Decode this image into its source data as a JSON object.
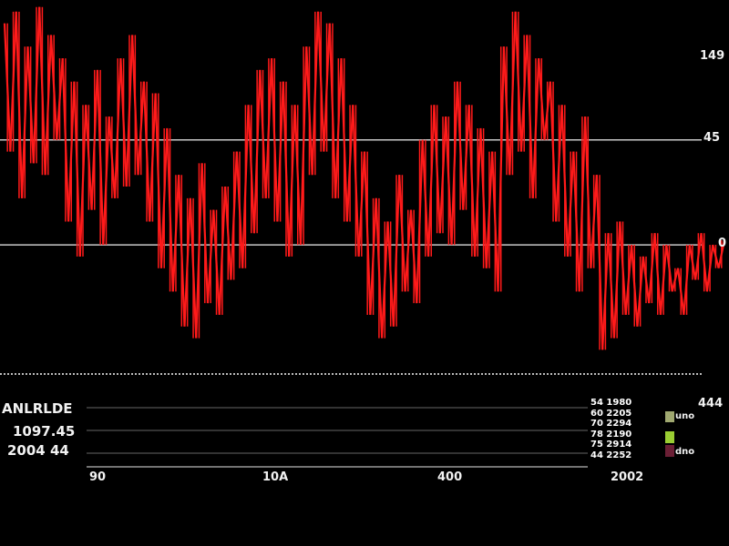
{
  "chart_data": {
    "type": "line",
    "ylim": [
      -55,
      105
    ],
    "gridlines": [
      0,
      45
    ],
    "y_tick_labels": [
      "149",
      "45",
      "0"
    ],
    "x_tick_labels": [
      "90",
      "10A",
      "400",
      "2002"
    ],
    "series_color": "#ff1a1a",
    "values": [
      95,
      40,
      100,
      20,
      85,
      35,
      102,
      30,
      90,
      45,
      80,
      10,
      70,
      -5,
      60,
      15,
      75,
      0,
      55,
      20,
      80,
      25,
      90,
      30,
      70,
      10,
      65,
      -10,
      50,
      -20,
      30,
      -35,
      20,
      -40,
      35,
      -25,
      15,
      -30,
      25,
      -15,
      40,
      -10,
      60,
      5,
      75,
      20,
      80,
      10,
      70,
      -5,
      60,
      0,
      85,
      30,
      100,
      40,
      95,
      20,
      80,
      10,
      60,
      -5,
      40,
      -30,
      20,
      -40,
      10,
      -35,
      30,
      -20,
      15,
      -25,
      45,
      -5,
      60,
      5,
      55,
      0,
      70,
      15,
      60,
      -5,
      50,
      -10,
      40,
      -20,
      85,
      30,
      100,
      40,
      90,
      20,
      80,
      45,
      70,
      10,
      60,
      -5,
      40,
      -20,
      55,
      -10,
      30,
      -45,
      5,
      -40,
      10,
      -30,
      0,
      -35,
      -5,
      -25,
      5,
      -30,
      0,
      -20,
      -10,
      -30,
      0,
      -15,
      5,
      -20,
      0,
      -10,
      2
    ],
    "grid": true
  },
  "legend": {
    "title": "ANLRLDE",
    "rows": [
      "1097.45",
      "2004 44"
    ],
    "right_label": "444",
    "swatches": [
      {
        "color": "#a0a870",
        "label": "uno"
      },
      {
        "color": "#9acd32",
        "label": ""
      },
      {
        "color": "#6b1f35",
        "label": "dno"
      }
    ],
    "values_column": [
      "54 1980",
      "60 2205",
      "70 2294",
      "78 2190",
      "75 2914",
      "44 2252"
    ]
  }
}
